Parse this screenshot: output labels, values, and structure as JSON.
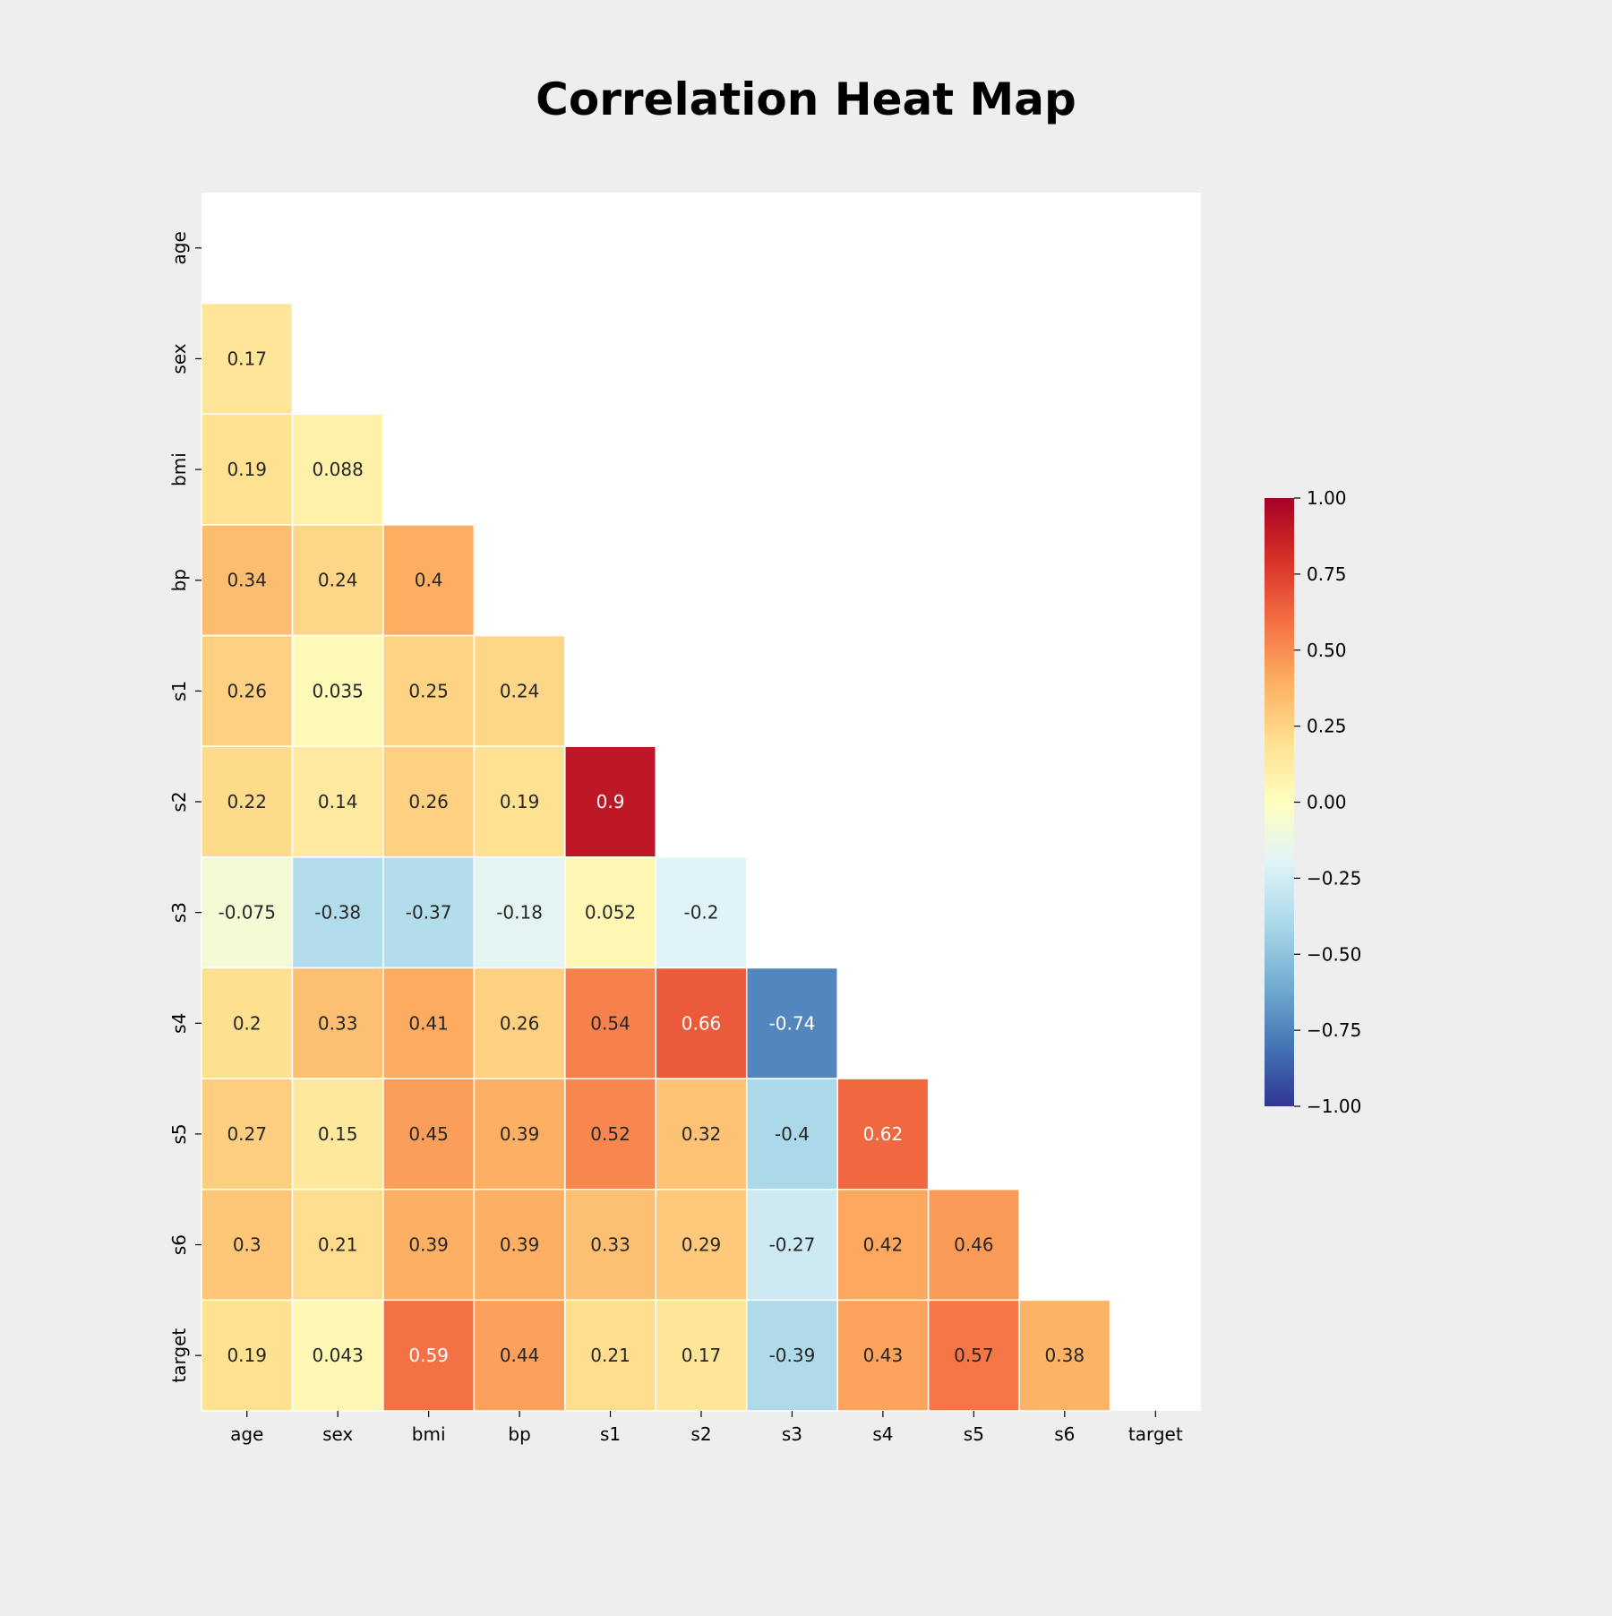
{
  "chart_data": {
    "type": "heatmap",
    "title": "Correlation Heat Map",
    "xlabel": "",
    "ylabel": "",
    "mask": "upper-triangle-including-diagonal",
    "x_labels": [
      "age",
      "sex",
      "bmi",
      "bp",
      "s1",
      "s2",
      "s3",
      "s4",
      "s5",
      "s6",
      "target"
    ],
    "y_labels": [
      "age",
      "sex",
      "bmi",
      "bp",
      "s1",
      "s2",
      "s3",
      "s4",
      "s5",
      "s6",
      "target"
    ],
    "cells": [
      [],
      [
        "0.17"
      ],
      [
        "0.19",
        "0.088"
      ],
      [
        "0.34",
        "0.24",
        "0.4"
      ],
      [
        "0.26",
        "0.035",
        "0.25",
        "0.24"
      ],
      [
        "0.22",
        "0.14",
        "0.26",
        "0.19",
        "0.9"
      ],
      [
        "-0.075",
        "-0.38",
        "-0.37",
        "-0.18",
        "0.052",
        "-0.2"
      ],
      [
        "0.2",
        "0.33",
        "0.41",
        "0.26",
        "0.54",
        "0.66",
        "-0.74"
      ],
      [
        "0.27",
        "0.15",
        "0.45",
        "0.39",
        "0.52",
        "0.32",
        "-0.4",
        "0.62"
      ],
      [
        "0.3",
        "0.21",
        "0.39",
        "0.39",
        "0.33",
        "0.29",
        "-0.27",
        "0.42",
        "0.46"
      ],
      [
        "0.19",
        "0.043",
        "0.59",
        "0.44",
        "0.21",
        "0.17",
        "-0.39",
        "0.43",
        "0.57",
        "0.38"
      ]
    ],
    "colormap": "RdYlBu_r",
    "vmin": -1,
    "vmax": 1,
    "colorbar_ticks": [
      "1.00",
      "0.75",
      "0.50",
      "0.25",
      "0.00",
      "−0.25",
      "−0.50",
      "−0.75",
      "−1.00"
    ],
    "colorbar_tick_values": [
      1.0,
      0.75,
      0.5,
      0.25,
      0.0,
      -0.25,
      -0.5,
      -0.75,
      -1.0
    ],
    "legend_placement": "right",
    "grid": false
  }
}
